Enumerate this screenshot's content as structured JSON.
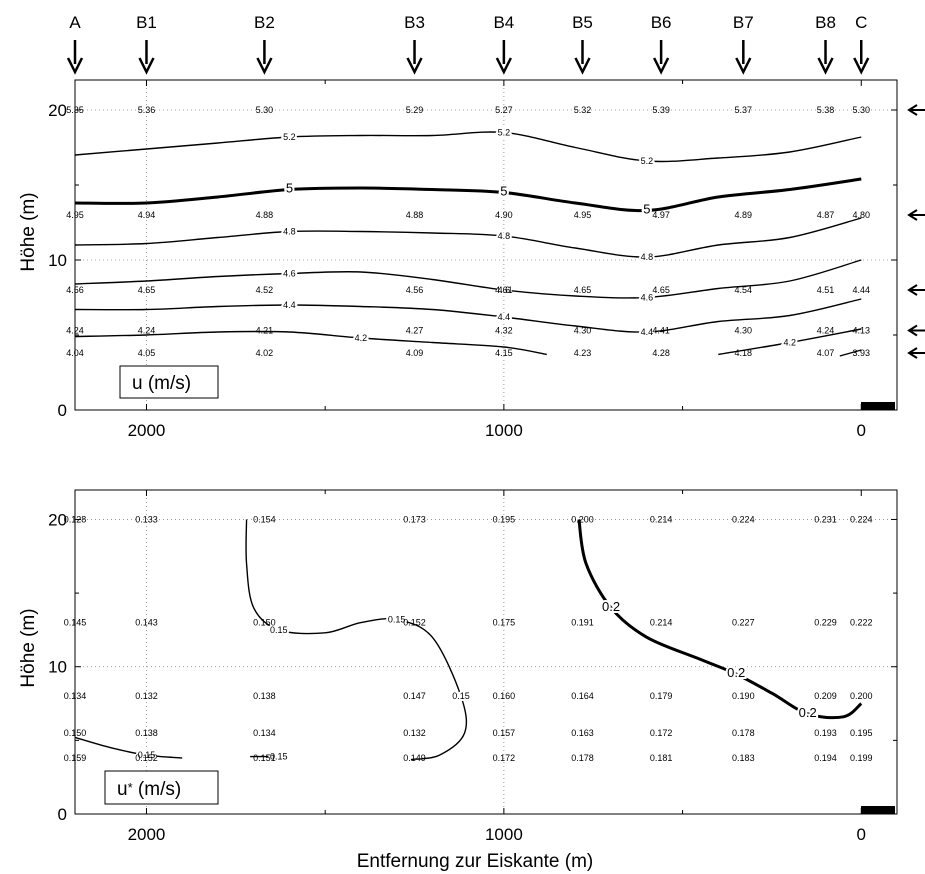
{
  "chart_data": {
    "station_labels": [
      "A",
      "B1",
      "B2",
      "B3",
      "B4",
      "B5",
      "B6",
      "B7",
      "B8",
      "C"
    ],
    "station_x": [
      2200,
      2000,
      1670,
      1250,
      1000,
      780,
      560,
      330,
      100,
      0
    ],
    "xlabel": "Entfernung zur Eiskante (m)",
    "xticks": [
      "2000",
      "1000",
      "0"
    ],
    "xlim": [
      2200,
      -100
    ],
    "ylim": [
      0,
      22
    ],
    "panels": [
      {
        "type": "contour",
        "ylabel": "Höhe (m)",
        "legend_label": "u (m/s)",
        "yticks": [
          "0",
          "10",
          "20"
        ],
        "levels": [
          {
            "z": 20,
            "values": [
              "5.35",
              "5.36",
              "5.30",
              "5.29",
              "5.27",
              "5.32",
              "5.39",
              "5.37",
              "5.38",
              "5.30"
            ]
          },
          {
            "z": 13,
            "values": [
              "4.95",
              "4.94",
              "4.88",
              "4.88",
              "4.90",
              "4.95",
              "4.97",
              "4.89",
              "4.87",
              "4.80"
            ]
          },
          {
            "z": 8,
            "values": [
              "4.56",
              "4.65",
              "4.52",
              "4.56",
              "4.61",
              "4.65",
              "4.65",
              "4.54",
              "4.51",
              "4.44"
            ]
          },
          {
            "z": 5.3,
            "values": [
              "4.24",
              "4.24",
              "4.21",
              "4.27",
              "4.32",
              "4.30",
              "4.41",
              "4.30",
              "4.24",
              "4.13"
            ]
          },
          {
            "z": 3.8,
            "values": [
              "4.04",
              "4.05",
              "4.02",
              "4.09",
              "4.15",
              "4.23",
              "4.28",
              "4.18",
              "4.07",
              "3.93"
            ]
          }
        ],
        "contours": [
          {
            "label": "5.2",
            "points": [
              [
                2200,
                17
              ],
              [
                2000,
                17.4
              ],
              [
                1800,
                17.8
              ],
              [
                1600,
                18.2
              ],
              [
                1400,
                18.3
              ],
              [
                1200,
                18.3
              ],
              [
                1000,
                18.5
              ],
              [
                800,
                17.5
              ],
              [
                600,
                16.6
              ],
              [
                400,
                16.8
              ],
              [
                200,
                17.2
              ],
              [
                0,
                18.2
              ]
            ]
          },
          {
            "label": "5",
            "bold": true,
            "points": [
              [
                2200,
                13.8
              ],
              [
                2000,
                13.8
              ],
              [
                1800,
                14.2
              ],
              [
                1600,
                14.7
              ],
              [
                1400,
                14.8
              ],
              [
                1200,
                14.7
              ],
              [
                1000,
                14.5
              ],
              [
                800,
                13.8
              ],
              [
                600,
                13.3
              ],
              [
                400,
                14.2
              ],
              [
                200,
                14.7
              ],
              [
                0,
                15.4
              ]
            ]
          },
          {
            "label": "4.8",
            "points": [
              [
                2200,
                11
              ],
              [
                2000,
                11.1
              ],
              [
                1800,
                11.5
              ],
              [
                1600,
                11.9
              ],
              [
                1400,
                11.9
              ],
              [
                1200,
                11.8
              ],
              [
                1000,
                11.6
              ],
              [
                800,
                10.8
              ],
              [
                600,
                10.2
              ],
              [
                400,
                11
              ],
              [
                200,
                11.5
              ],
              [
                0,
                12.8
              ]
            ]
          },
          {
            "label": "4.6",
            "points": [
              [
                2200,
                8.4
              ],
              [
                2000,
                8.6
              ],
              [
                1800,
                8.9
              ],
              [
                1600,
                9.1
              ],
              [
                1400,
                9.2
              ],
              [
                1200,
                8.7
              ],
              [
                1000,
                8
              ],
              [
                800,
                7.6
              ],
              [
                600,
                7.5
              ],
              [
                400,
                8.1
              ],
              [
                200,
                8.6
              ],
              [
                0,
                10
              ]
            ]
          },
          {
            "label": "4.4",
            "points": [
              [
                2200,
                6.7
              ],
              [
                2000,
                6.7
              ],
              [
                1800,
                6.9
              ],
              [
                1600,
                7
              ],
              [
                1400,
                6.9
              ],
              [
                1200,
                6.7
              ],
              [
                1000,
                6.2
              ],
              [
                800,
                5.6
              ],
              [
                600,
                5.2
              ],
              [
                400,
                5.9
              ],
              [
                200,
                6.3
              ],
              [
                0,
                7.4
              ]
            ]
          },
          {
            "label": "4.2",
            "points": [
              [
                2200,
                4.9
              ],
              [
                2000,
                5
              ],
              [
                1800,
                5.2
              ],
              [
                1600,
                5.2
              ],
              [
                1400,
                4.8
              ],
              [
                1200,
                4.5
              ],
              [
                1000,
                4.2
              ],
              [
                880,
                3.7
              ]
            ]
          },
          {
            "label": "4.2",
            "points": [
              [
                400,
                3.7
              ],
              [
                200,
                4.5
              ],
              [
                0,
                5.4
              ]
            ]
          },
          {
            "label": "",
            "points": [
              [
                60,
                3.6
              ],
              [
                0,
                4
              ]
            ]
          }
        ]
      },
      {
        "type": "contour",
        "ylabel": "Höhe (m)",
        "legend_label": "u* (m/s)",
        "legend_main": "u",
        "legend_sub": "*",
        "legend_rest": " (m/s)",
        "yticks": [
          "0",
          "10",
          "20"
        ],
        "levels": [
          {
            "z": 20,
            "values": [
              "0.128",
              "0.133",
              "0.154",
              "0.173",
              "0.195",
              "0.200",
              "0.214",
              "0.224",
              "0.231",
              "0.224"
            ]
          },
          {
            "z": 13,
            "values": [
              "0.145",
              "0.143",
              "0.150",
              "0.152",
              "0.175",
              "0.191",
              "0.214",
              "0.227",
              "0.229",
              "0.222"
            ]
          },
          {
            "z": 8,
            "values": [
              "0.134",
              "0.132",
              "0.138",
              "0.147",
              "0.160",
              "0.164",
              "0.179",
              "0.190",
              "0.209",
              "0.200"
            ]
          },
          {
            "z": 5.5,
            "values": [
              "0.150",
              "0.138",
              "0.134",
              "0.132",
              "0.157",
              "0.163",
              "0.172",
              "0.178",
              "0.193",
              "0.195"
            ]
          },
          {
            "z": 3.8,
            "values": [
              "0.159",
              "0.152",
              "0.151",
              "0.149",
              "0.172",
              "0.178",
              "0.181",
              "0.183",
              "0.194",
              "0.199"
            ]
          }
        ],
        "contours": [
          {
            "label": "0.15",
            "points": [
              [
                2200,
                5.2
              ],
              [
                2100,
                4.5
              ],
              [
                2000,
                4
              ],
              [
                1900,
                3.8
              ]
            ]
          },
          {
            "label": "0.15",
            "points": [
              [
                1720,
                20
              ],
              [
                1720,
                17
              ],
              [
                1700,
                14
              ],
              [
                1630,
                12.5
              ],
              [
                1500,
                12.3
              ],
              [
                1400,
                13
              ],
              [
                1300,
                13.2
              ],
              [
                1200,
                12
              ],
              [
                1120,
                8
              ],
              [
                1110,
                5.5
              ],
              [
                1180,
                4
              ],
              [
                1260,
                3.7
              ]
            ]
          },
          {
            "label": "0.2",
            "bold": true,
            "points": [
              [
                790,
                20
              ],
              [
                770,
                17
              ],
              [
                700,
                14
              ],
              [
                600,
                12
              ],
              [
                450,
                10.5
              ],
              [
                350,
                9.5
              ],
              [
                250,
                8.2
              ],
              [
                150,
                6.8
              ],
              [
                50,
                6.6
              ],
              [
                0,
                7.5
              ]
            ]
          },
          {
            "label": "0.15",
            "points": [
              [
                1710,
                3.9
              ],
              [
                1630,
                3.9
              ]
            ]
          }
        ]
      }
    ]
  }
}
